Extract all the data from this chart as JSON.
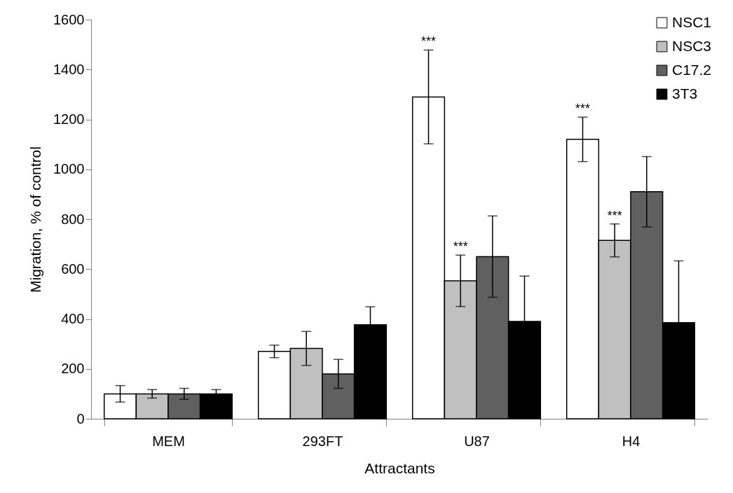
{
  "chart_data": {
    "type": "bar",
    "xlabel": "Attractants",
    "ylabel": "Migration, % of control",
    "categories": [
      "MEM",
      "293FT",
      "U87",
      "H4"
    ],
    "series": [
      {
        "name": "NSC1",
        "color": "#ffffff",
        "values": [
          100,
          270,
          1290,
          1120
        ],
        "errors": [
          33,
          25,
          188,
          89
        ]
      },
      {
        "name": "NSC3",
        "color": "#c0c0c0",
        "values": [
          100,
          282,
          553,
          715
        ],
        "errors": [
          17,
          68,
          103,
          66
        ]
      },
      {
        "name": "C17.2",
        "color": "#606060",
        "values": [
          100,
          180,
          650,
          910
        ],
        "errors": [
          22,
          58,
          163,
          141
        ]
      },
      {
        "name": "3T3",
        "color": "#000000",
        "values": [
          100,
          377,
          390,
          385
        ],
        "errors": [
          17,
          72,
          182,
          248
        ]
      }
    ],
    "ylim": [
      0,
      1600
    ],
    "yticks": [
      0,
      200,
      400,
      600,
      800,
      1000,
      1200,
      1400,
      1600
    ],
    "annotations": [
      "***",
      {
        "text": "***",
        "x": "U87",
        "y": 553
      },
      "***",
      {
        "text": "***",
        "x": "H4",
        "y": 715
      }
    ],
    "grid": false,
    "legend": "top right"
  }
}
